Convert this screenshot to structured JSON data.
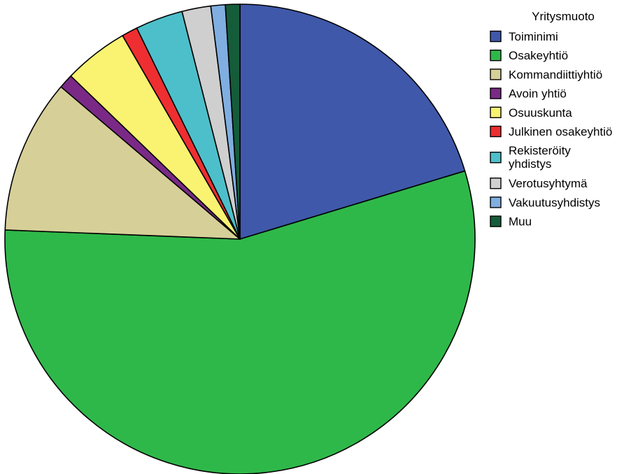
{
  "chart_data": {
    "type": "pie",
    "title": "",
    "legend_title": "Yritysmuoto",
    "legend_position": "right",
    "start_angle": "12 o'clock",
    "direction": "clockwise",
    "slices": [
      {
        "label": "Toiminimi",
        "value": 20.5,
        "color": "#3f58aa"
      },
      {
        "label": "Osakeyhtiö",
        "value": 55.8,
        "color": "#2fb84a"
      },
      {
        "label": "Kommandiittiyhtiö",
        "value": 10.7,
        "color": "#d6cf98"
      },
      {
        "label": "Avoin yhtiö",
        "value": 1.0,
        "color": "#7a2a86"
      },
      {
        "label": "Osuuskunta",
        "value": 4.5,
        "color": "#f9f371"
      },
      {
        "label": "Julkinen osakeyhtiö",
        "value": 1.1,
        "color": "#ee2e31"
      },
      {
        "label": "Rekisteröity yhdistys",
        "label_lines": [
          "Rekisteröity",
          "yhdistys"
        ],
        "value": 3.3,
        "color": "#4dbfca"
      },
      {
        "label": "Verotusyhtymä",
        "value": 2.0,
        "color": "#cfcfcf"
      },
      {
        "label": "Vakuutusyhdistys",
        "value": 1.0,
        "color": "#80aee0"
      },
      {
        "label": "Muu",
        "value": 1.0,
        "color": "#155c3a"
      }
    ]
  }
}
